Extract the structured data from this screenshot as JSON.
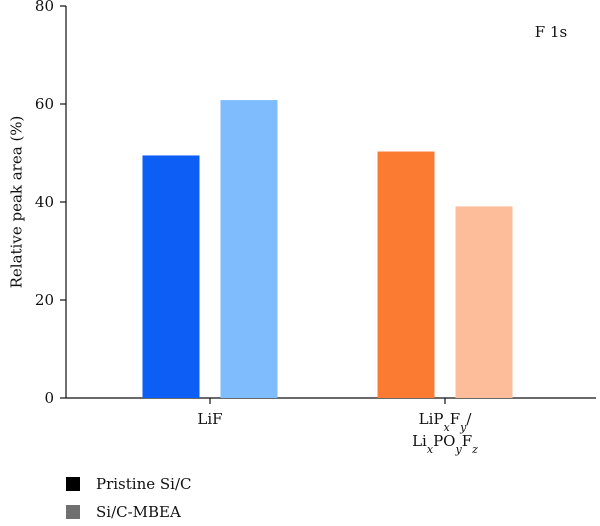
{
  "chart_data": {
    "type": "bar",
    "title": "",
    "panel_label": "F 1s",
    "xlabel": "",
    "ylabel": "Relative peak area (%)",
    "ylim": [
      0,
      80
    ],
    "yticks": [
      0,
      20,
      40,
      60,
      80
    ],
    "categories": [
      "LiF",
      "LiPxFy/LixPOyFz"
    ],
    "category_lines": [
      [
        "LiF"
      ],
      [
        "LiPxFy/",
        "LixPOyFz"
      ]
    ],
    "bars": [
      {
        "category": "LiF",
        "legend_index": 0,
        "value": 49.5,
        "color": "#0d5ef5"
      },
      {
        "category": "LiF",
        "legend_index": 1,
        "value": 60.8,
        "color": "#7fbcfd"
      },
      {
        "category": "LiPxFy/LixPOyFz",
        "legend_index": 0,
        "value": 50.3,
        "color": "#fc7b32"
      },
      {
        "category": "LiPxFy/LixPOyFz",
        "legend_index": 1,
        "value": 39.1,
        "color": "#fdbd9b"
      }
    ],
    "legend": [
      {
        "name": "Pristine Si/C",
        "color": "#000000"
      },
      {
        "name": "Si/C-MBEA",
        "color": "#707070"
      }
    ],
    "grid": false,
    "legend_position": "bottom-left"
  }
}
